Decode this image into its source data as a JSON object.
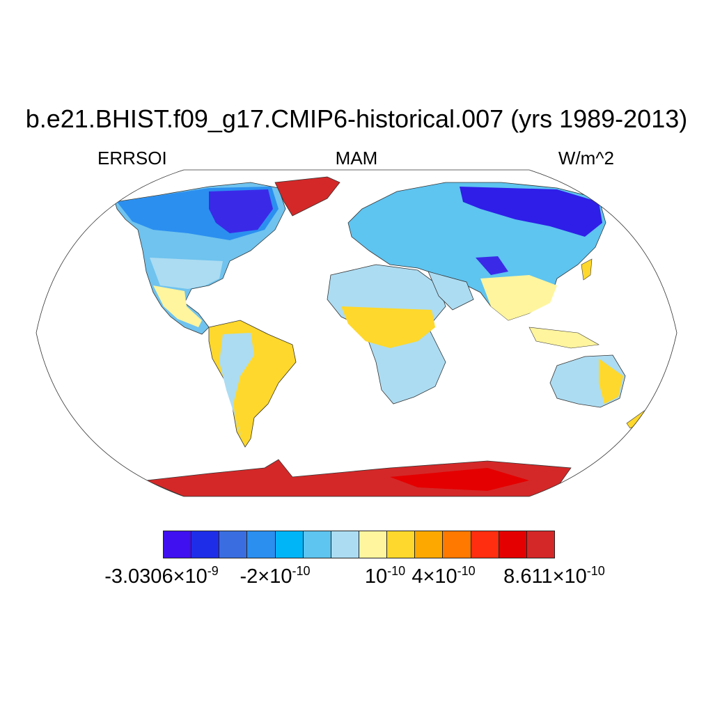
{
  "title": "b.e21.BHIST.f09_g17.CMIP6-historical.007 (yrs 1989-2013)",
  "subtitle_left": "ERRSOI",
  "subtitle_center": "MAM",
  "subtitle_right": "W/m^2",
  "colorbar": {
    "colors": [
      "#4010f0",
      "#1e2ee8",
      "#3a6ee0",
      "#2b8ff0",
      "#00b4f8",
      "#5ec4f0",
      "#acdcf2",
      "#fff59e",
      "#fed82c",
      "#fca800",
      "#ff7800",
      "#ff2e10",
      "#e40000",
      "#d42828"
    ],
    "labels": [
      {
        "mant": "-3.0306",
        "exp": "-9"
      },
      {
        "mant": "-2",
        "exp": "-10"
      },
      {
        "mant": "",
        "exp": "-10"
      },
      {
        "mant": "4",
        "exp": "-10"
      },
      {
        "mant": "8.611",
        "exp": "-10"
      }
    ]
  },
  "map": {
    "projection": "robinson",
    "field": "ERRSOI",
    "season": "MAM",
    "units": "W/m^2"
  }
}
